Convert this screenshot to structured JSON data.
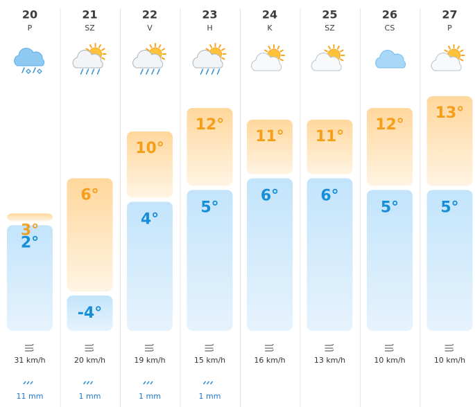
{
  "days": [
    {
      "day": "20",
      "weekday": "P",
      "max": 3,
      "max_label": "3°",
      "min": 2,
      "min_label": "2°",
      "wind": "31 km/h",
      "rain": "11 mm"
    },
    {
      "day": "21",
      "weekday": "SZ",
      "max": 6,
      "max_label": "6°",
      "min": -4,
      "min_label": "-4°",
      "wind": "20 km/h",
      "rain": "1 mm"
    },
    {
      "day": "22",
      "weekday": "V",
      "max": 10,
      "max_label": "10°",
      "min": 4,
      "min_label": "4°",
      "wind": "19 km/h",
      "rain": "1 mm"
    },
    {
      "day": "23",
      "weekday": "H",
      "max": 12,
      "max_label": "12°",
      "min": 5,
      "min_label": "5°",
      "wind": "15 km/h",
      "rain": "1 mm"
    },
    {
      "day": "24",
      "weekday": "K",
      "max": 11,
      "max_label": "11°",
      "min": 6,
      "min_label": "6°",
      "wind": "16 km/h"
    },
    {
      "day": "25",
      "weekday": "SZ",
      "max": 11,
      "max_label": "11°",
      "min": 6,
      "min_label": "6°",
      "wind": "13 km/h"
    },
    {
      "day": "26",
      "weekday": "CS",
      "max": 12,
      "max_label": "12°",
      "min": 5,
      "min_label": "5°",
      "wind": "10 km/h"
    },
    {
      "day": "27",
      "weekday": "P",
      "max": 13,
      "max_label": "13°",
      "min": 5,
      "min_label": "5°",
      "wind": "10 km/h"
    }
  ]
}
